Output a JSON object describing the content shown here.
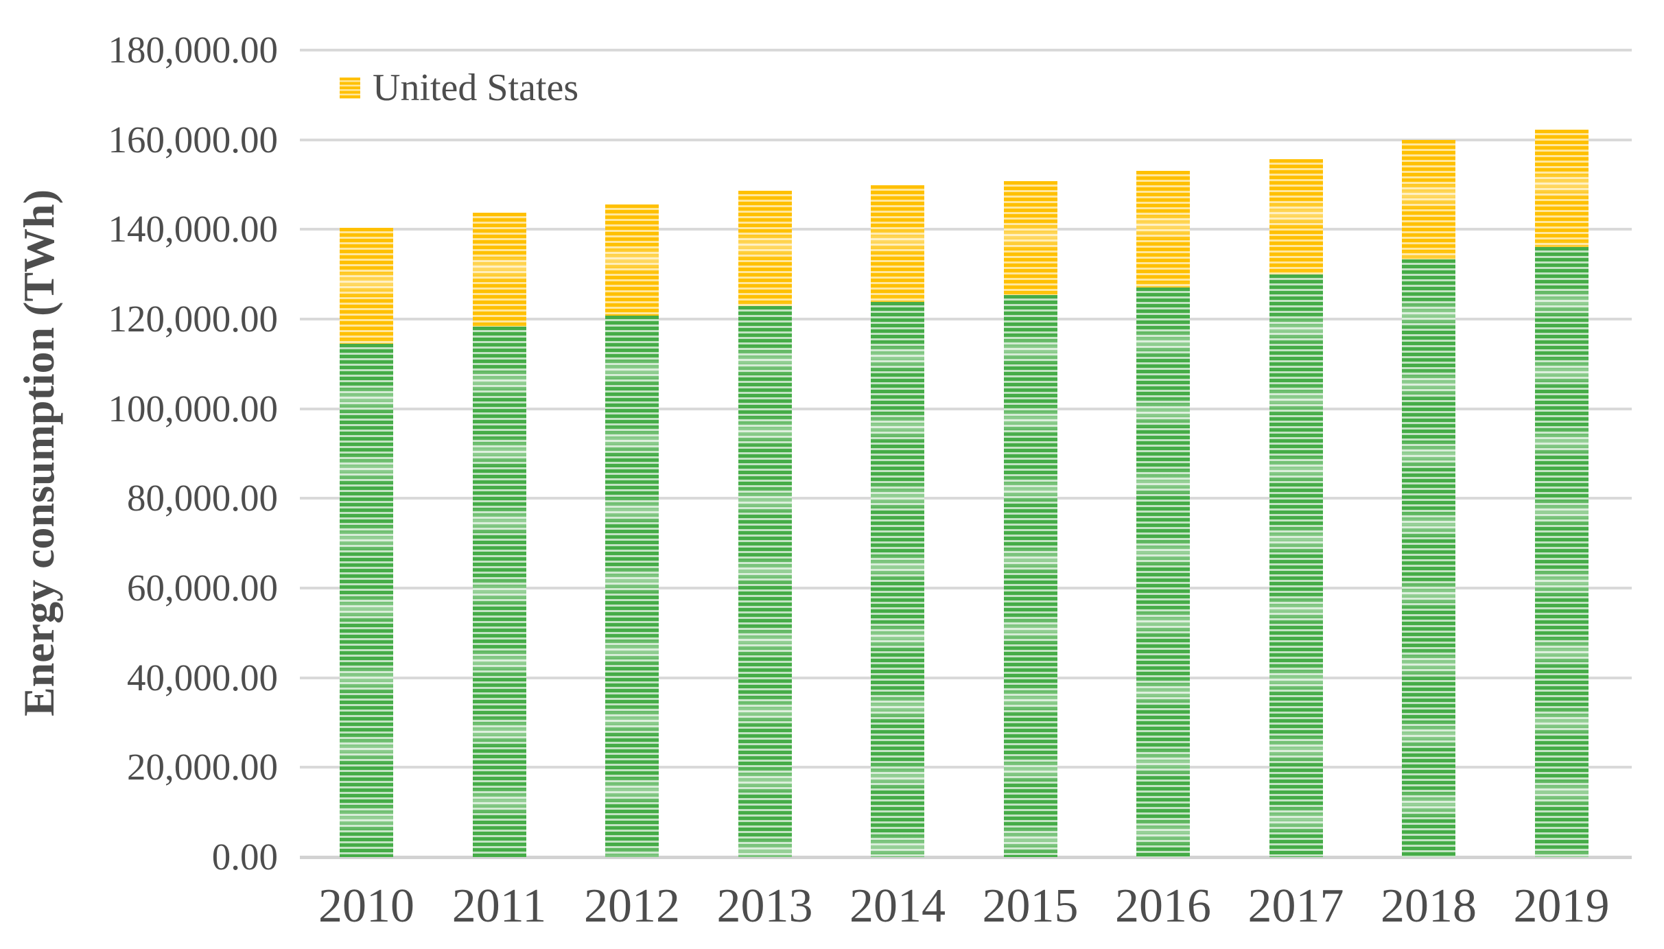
{
  "chart_data": {
    "type": "bar",
    "stacked": true,
    "title": "",
    "xlabel": "",
    "ylabel": "Energy consumption (TWh)",
    "ylim": [
      0,
      180000
    ],
    "ytick_interval": 20000,
    "ytick_labels_top_to_bottom": [
      "180,000.00",
      "160,000.00",
      "140,000.00",
      "120,000.00",
      "100,000.00",
      "80,000.00",
      "60,000.00",
      "40,000.00",
      "20,000.00",
      "0.00"
    ],
    "grid": "horizontal",
    "legend": {
      "position": "inside-top-left",
      "entries": [
        "United States"
      ]
    },
    "categories": [
      "2010",
      "2011",
      "2012",
      "2013",
      "2014",
      "2015",
      "2016",
      "2017",
      "2018",
      "2019"
    ],
    "series": [
      {
        "name": "",
        "legend_visible": false,
        "stack_position": "bottom",
        "color": "#45ac47",
        "pattern": "horizontal-stripes",
        "values": [
          114500,
          118300,
          120800,
          122950,
          123900,
          125350,
          127050,
          129950,
          133300,
          136050
        ]
      },
      {
        "name": "United States",
        "legend_visible": true,
        "stack_position": "top",
        "color": "#ffc000",
        "pattern": "horizontal-stripes",
        "values": [
          25850,
          25400,
          24750,
          25650,
          25950,
          25350,
          25950,
          25750,
          26600,
          26150
        ]
      }
    ],
    "stack_totals": [
      140350,
      143700,
      145550,
      148600,
      149850,
      150700,
      153000,
      155700,
      159900,
      162200
    ],
    "colors": {
      "united_states_fill": "#ffc000",
      "unlabeled_series_fill": "#45ac47",
      "gridline": "#d9d9d9",
      "axis_text": "#4d4d4d"
    }
  }
}
